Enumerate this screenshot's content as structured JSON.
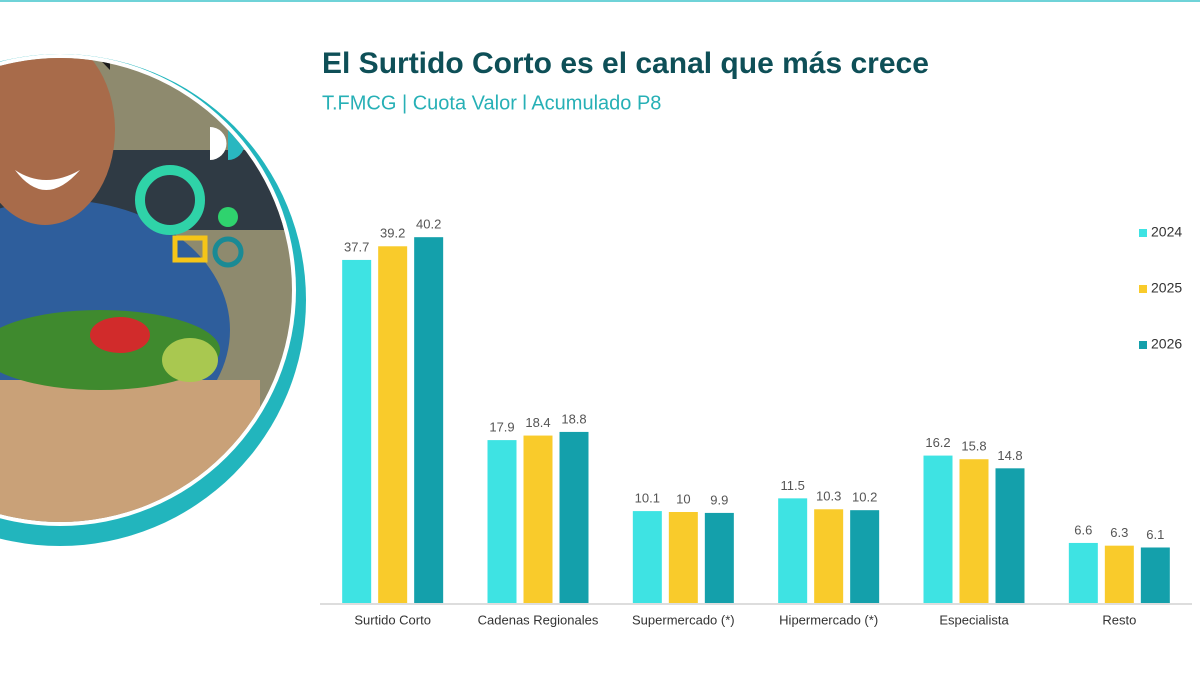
{
  "chart_data": {
    "type": "bar",
    "title": "El Surtido Corto es el canal que más crece",
    "subtitle": "T.FMCG | Cuota Valor l Acumulado P8",
    "categories": [
      "Surtido Corto",
      "Cadenas Regionales",
      "Supermercado (*)",
      "Hipermercado (*)",
      "Especialista",
      "Resto"
    ],
    "series": [
      {
        "name": "2024",
        "color": "#3ee3e3",
        "values": [
          37.7,
          17.9,
          10.1,
          11.5,
          16.2,
          6.6
        ]
      },
      {
        "name": "2025",
        "color": "#f9cb2b",
        "values": [
          39.2,
          18.4,
          10,
          10.3,
          15.8,
          6.3
        ]
      },
      {
        "name": "2026",
        "color": "#14a0ab",
        "values": [
          40.2,
          18.8,
          9.9,
          10.2,
          14.8,
          6.1
        ]
      }
    ],
    "legend": "right"
  }
}
